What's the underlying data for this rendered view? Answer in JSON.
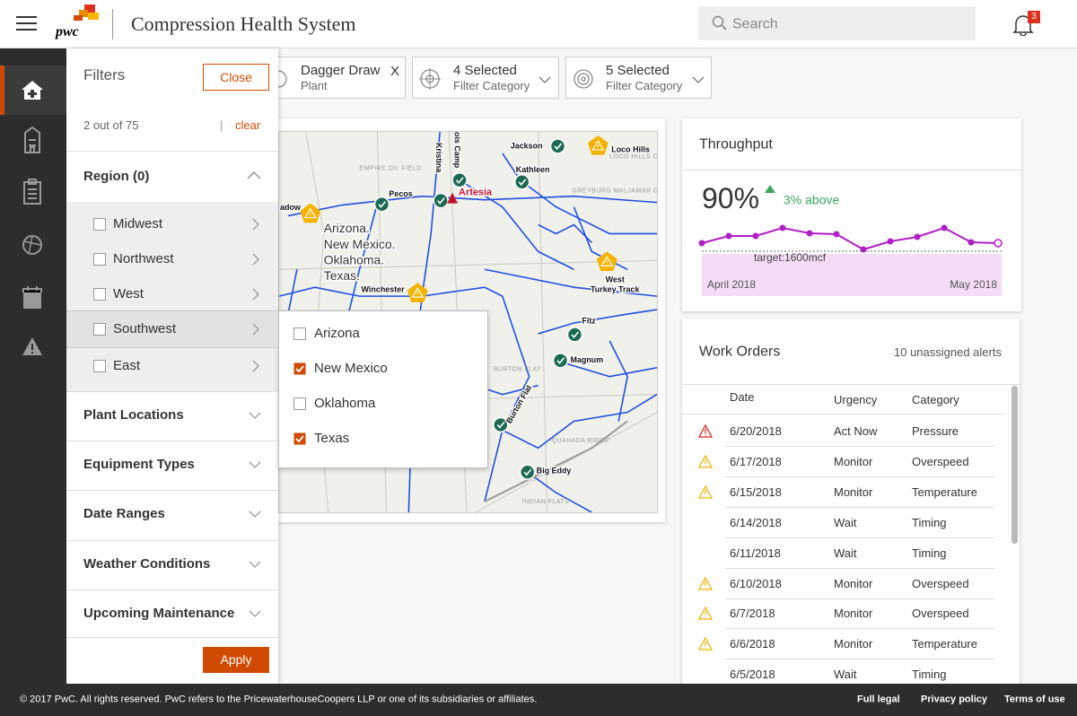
{
  "header": {
    "logo": "pwc",
    "title": "Compression Health System",
    "search": "Search",
    "notifications": "3"
  },
  "filters": {
    "title": "Filters",
    "close": "Close",
    "count": "2 out of 75",
    "separator": "|",
    "clear": "clear",
    "region": {
      "label": "Region (0)",
      "items": [
        {
          "label": "Midwest",
          "checked": false
        },
        {
          "label": "Northwest",
          "checked": false
        },
        {
          "label": "West",
          "checked": false
        },
        {
          "label": "Southwest",
          "checked": false,
          "highlighted": true
        },
        {
          "label": "East",
          "checked": false
        }
      ]
    },
    "sections": [
      "Plant Locations",
      "Equipment Types",
      "Date Ranges",
      "Weather Conditions",
      "Upcoming Maintenance"
    ],
    "apply": "Apply"
  },
  "submenu": {
    "items": [
      {
        "label": "Arizona",
        "checked": false
      },
      {
        "label": "New Mexico",
        "checked": true
      },
      {
        "label": "Oklahoma",
        "checked": false
      },
      {
        "label": "Texas",
        "checked": true
      }
    ]
  },
  "chips": [
    {
      "title": "Dagger Draw",
      "subtitle": "Plant",
      "remove": "X"
    },
    {
      "title": "4 Selected",
      "subtitle": "Filter Category"
    },
    {
      "title": "5 Selected",
      "subtitle": "Filter Category"
    }
  ],
  "map": {
    "overlay": [
      "Arizona.",
      "New Mexico.",
      "Oklahoma.",
      "Texas."
    ],
    "base_labels": [
      "EMPIRE OIL FIELD",
      "LOCO HILLS OIL FIELD",
      "GREYBURG MALJAMAR OIL FIELD",
      "BURTON FLAT",
      "QUAHADA RIDGE",
      "INDIAN FLATS"
    ],
    "sites": [
      {
        "lines": [
          "Jackson"
        ],
        "status": "ok"
      },
      {
        "lines": [
          "Loco Hills"
        ],
        "status": "warning"
      },
      {
        "lines": [
          "Kathleen"
        ],
        "status": "ok"
      },
      {
        "lines": [
          "Pecos"
        ],
        "status": "ok"
      },
      {
        "lines": [
          "ois Camp"
        ],
        "status": "ok"
      },
      {
        "lines": [
          "Kristina"
        ],
        "status": "ok"
      },
      {
        "lines": [
          "Artesia"
        ],
        "status": "alert"
      },
      {
        "lines": [
          "adow"
        ],
        "status": "warning"
      },
      {
        "lines": [
          "Winchester"
        ],
        "status": "warning"
      },
      {
        "lines": [
          "West",
          "Turkey Track"
        ],
        "status": "warning"
      },
      {
        "lines": [
          "Fitz"
        ],
        "status": "ok"
      },
      {
        "lines": [
          "Magnum"
        ],
        "status": "ok"
      },
      {
        "lines": [
          "Burton Flat"
        ],
        "status": "ok"
      },
      {
        "lines": [
          "Big Eddy"
        ],
        "status": "ok"
      }
    ]
  },
  "throughput": {
    "title": "Throughput",
    "value": "90%",
    "change": "3% above",
    "chart": {
      "type": "line",
      "values": [
        1645,
        1685,
        1685,
        1730,
        1700,
        1695,
        1610,
        1655,
        1680,
        1730,
        1650,
        1645
      ],
      "color": "#b01ec6",
      "ylim": [
        1550,
        1750
      ],
      "target": 1600,
      "target_label": "target:1600mcf",
      "x_labels": [
        "April 2018",
        "May 2018"
      ]
    }
  },
  "work_orders": {
    "title": "Work Orders",
    "alerts": "10 unassigned alerts",
    "columns": [
      "Date",
      "Urgency",
      "Category"
    ],
    "rows": [
      {
        "date": "6/20/2018",
        "urgency": "Act Now",
        "category": "Pressure",
        "level": "critical"
      },
      {
        "date": "6/17/2018",
        "urgency": "Monitor",
        "category": "Overspeed",
        "level": "warning"
      },
      {
        "date": "6/15/2018",
        "urgency": "Monitor",
        "category": "Temperature",
        "level": "warning"
      },
      {
        "date": "6/14/2018",
        "urgency": "Wait",
        "category": "Timing",
        "level": "none"
      },
      {
        "date": "6/11/2018",
        "urgency": "Wait",
        "category": "Timing",
        "level": "none"
      },
      {
        "date": "6/10/2018",
        "urgency": "Monitor",
        "category": "Overspeed",
        "level": "warning"
      },
      {
        "date": "6/7/2018",
        "urgency": "Monitor",
        "category": "Overspeed",
        "level": "warning"
      },
      {
        "date": "6/6/2018",
        "urgency": "Monitor",
        "category": "Temperature",
        "level": "warning"
      },
      {
        "date": "6/5/2018",
        "urgency": "Wait",
        "category": "Timing",
        "level": "none"
      }
    ]
  },
  "footer": {
    "copyright": "© 2017 PwC. All rights reserved. PwC refers to the PricewaterhouseCoopers LLP or one of its subsidiaries or affiliates.",
    "links": [
      "Full legal",
      "Privacy policy",
      "Terms of use"
    ]
  }
}
